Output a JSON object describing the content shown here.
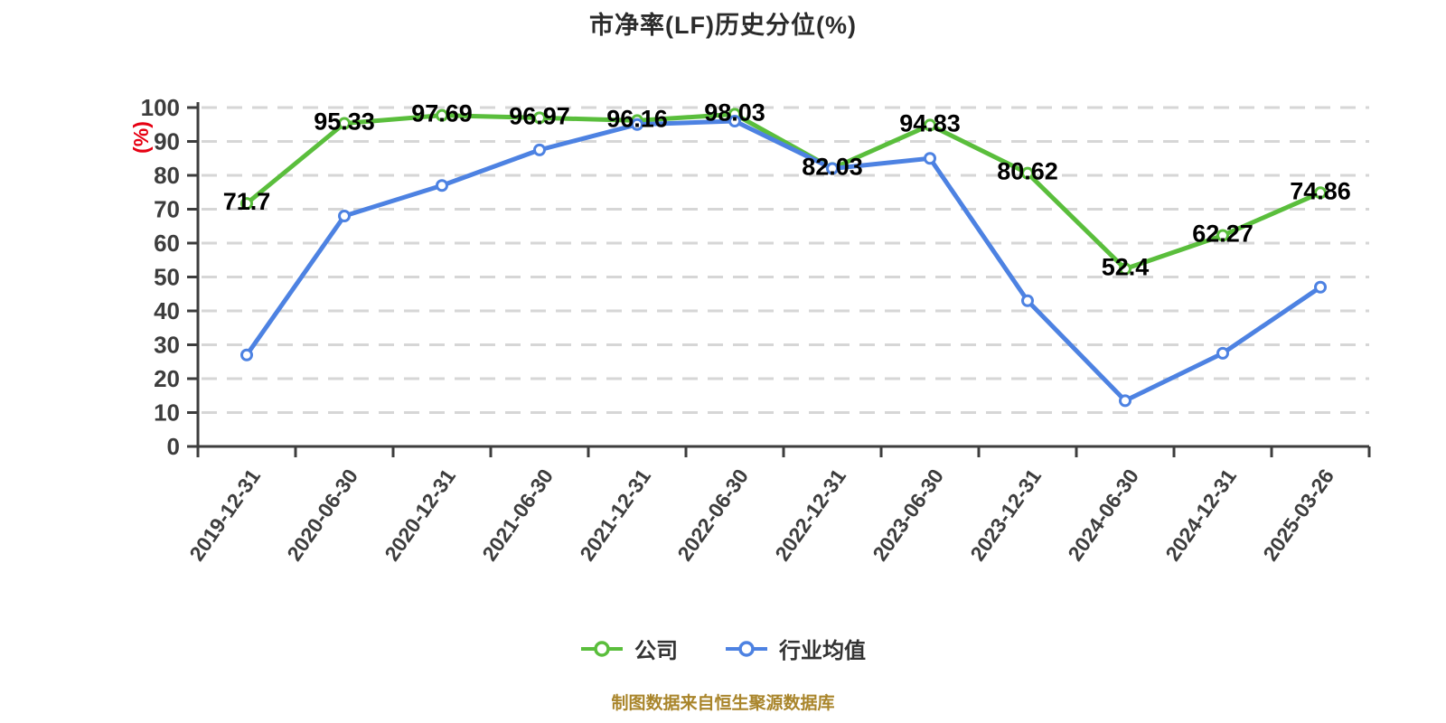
{
  "page": {
    "footer_note": "制图数据来自恒生聚源数据库"
  },
  "colors": {
    "background": "#ffffff",
    "company_line": "#5abe3c",
    "industry_line": "#4d82e2",
    "axis": "#3d3d3d",
    "grid": "#d6d6d6",
    "tick_label": "#3d3d3d",
    "value_label": "#000000",
    "y_unit_label": "#e60012",
    "title_text": "#2b2b2b",
    "legend_text": "#333333",
    "footer_text": "#a9852b"
  },
  "chart_data": {
    "type": "line",
    "title": "市净率(LF)历史分位(%)",
    "xlabel": "",
    "ylabel": "(%)",
    "ylim": [
      0,
      100
    ],
    "y_ticks": [
      0,
      10,
      20,
      30,
      40,
      50,
      60,
      70,
      80,
      90,
      100
    ],
    "grid": "horizontal-dashed",
    "legend_position": "bottom",
    "categories": [
      "2019-12-31",
      "2020-06-30",
      "2020-12-31",
      "2021-06-30",
      "2021-12-31",
      "2022-06-30",
      "2022-12-31",
      "2023-06-30",
      "2023-12-31",
      "2024-06-30",
      "2024-12-31",
      "2025-03-26"
    ],
    "series": [
      {
        "name": "公司",
        "color": "#5abe3c",
        "show_point_labels": true,
        "values": [
          71.7,
          95.33,
          97.69,
          96.97,
          96.16,
          98.03,
          82.03,
          94.83,
          80.62,
          52.4,
          62.27,
          74.86
        ]
      },
      {
        "name": "行业均值",
        "color": "#4d82e2",
        "show_point_labels": false,
        "values": [
          27,
          68,
          77,
          87.5,
          95,
          96,
          82,
          85,
          43,
          13.5,
          27.5,
          47
        ]
      }
    ]
  }
}
